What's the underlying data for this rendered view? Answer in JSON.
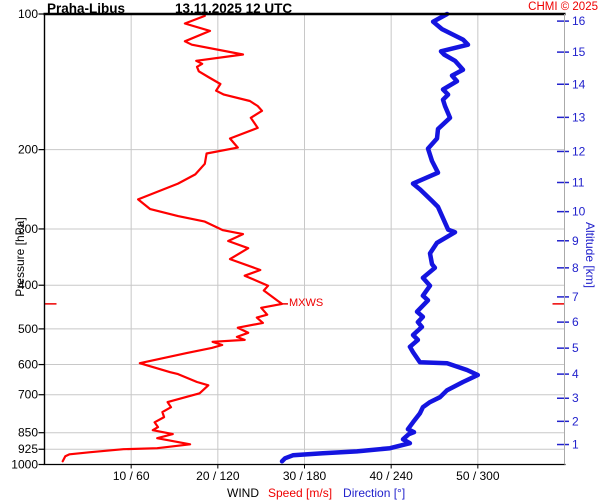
{
  "header": {
    "station": "Praha-Libus",
    "datetime": "13.11.2025 12 UTC",
    "credit": "CHMI © 2025"
  },
  "axes": {
    "pressure_label": "Pressure [hPa]",
    "altitude_label": "Altitude [km]",
    "wind_label": "WIND",
    "speed_label": "Speed [m/s]",
    "direction_label": "Direction [°]"
  },
  "annotations": {
    "mxws": "MXWS"
  },
  "colors": {
    "speed_curve": "#ff0000",
    "direction_curve": "#1414e0",
    "speed_text": "#ee0000",
    "direction_text": "#2222cc",
    "grid": "#c8c8c8",
    "frame": "#000000",
    "right_axis": "#aaaaaa"
  },
  "chart_data": {
    "type": "line",
    "title": "Praha-Libus 13.11.2025 12 UTC — vertical wind profile sounding",
    "grid": true,
    "y_axis": {
      "label": "Pressure [hPa]",
      "scale": "log",
      "min": 100,
      "max": 1000,
      "ticks": [
        100,
        200,
        300,
        400,
        500,
        600,
        700,
        850,
        925,
        1000
      ]
    },
    "y_axis_right": {
      "label": "Altitude [km]",
      "ticks": [
        {
          "km": 16,
          "p": 103.7
        },
        {
          "km": 15,
          "p": 121.5
        },
        {
          "km": 14,
          "p": 143.2
        },
        {
          "km": 13,
          "p": 169.6
        },
        {
          "km": 12,
          "p": 201.9
        },
        {
          "km": 11,
          "p": 236.6
        },
        {
          "km": 10,
          "p": 274.6
        },
        {
          "km": 9,
          "p": 318.7
        },
        {
          "km": 8,
          "p": 366.0
        },
        {
          "km": 7,
          "p": 424.6
        },
        {
          "km": 6,
          "p": 483.0
        },
        {
          "km": 5,
          "p": 551.7
        },
        {
          "km": 4,
          "p": 630.0
        },
        {
          "km": 3,
          "p": 712.7
        },
        {
          "km": 2,
          "p": 802.0
        },
        {
          "km": 1,
          "p": 903.0
        }
      ]
    },
    "x_axes": {
      "speed": {
        "label": "Speed [m/s]",
        "min": 0,
        "max": 60
      },
      "direction": {
        "label": "Direction [°]",
        "min": 0,
        "max": 360
      }
    },
    "x_tick_labels": [
      {
        "speed": 10,
        "direction": 60,
        "label": "10 / 60"
      },
      {
        "speed": 20,
        "direction": 120,
        "label": "20 / 120"
      },
      {
        "speed": 30,
        "direction": 180,
        "label": "30 / 180"
      },
      {
        "speed": 40,
        "direction": 240,
        "label": "40 / 240"
      },
      {
        "speed": 50,
        "direction": 300,
        "label": "50 / 300"
      }
    ],
    "annotation": {
      "label": "MXWS",
      "pressure": 440,
      "speed": 27.4
    },
    "series": [
      {
        "name": "wind_speed",
        "axis": "speed",
        "unit": "m/s",
        "width": 2.2,
        "points": [
          [
            101,
            18.5
          ],
          [
            105,
            16.2
          ],
          [
            109,
            19.1
          ],
          [
            115,
            16.2
          ],
          [
            117,
            17.0
          ],
          [
            123,
            22.9
          ],
          [
            127,
            17.5
          ],
          [
            129,
            18.2
          ],
          [
            131,
            17.6
          ],
          [
            134,
            17.8
          ],
          [
            138,
            18.9
          ],
          [
            143,
            20.3
          ],
          [
            148,
            19.8
          ],
          [
            151,
            20.7
          ],
          [
            156,
            23.7
          ],
          [
            160,
            24.6
          ],
          [
            164,
            25.1
          ],
          [
            170,
            23.8
          ],
          [
            179,
            24.6
          ],
          [
            189,
            21.4
          ],
          [
            198,
            22.3
          ],
          [
            204,
            18.7
          ],
          [
            215,
            18.5
          ],
          [
            227,
            17.4
          ],
          [
            238,
            15.4
          ],
          [
            258,
            10.8
          ],
          [
            271,
            12.2
          ],
          [
            281,
            15.4
          ],
          [
            289,
            18.5
          ],
          [
            302,
            20.6
          ],
          [
            308,
            22.9
          ],
          [
            319,
            21.2
          ],
          [
            331,
            23.5
          ],
          [
            350,
            21.4
          ],
          [
            370,
            24.9
          ],
          [
            381,
            23.1
          ],
          [
            401,
            25.8
          ],
          [
            411,
            25.3
          ],
          [
            433,
            26.9
          ],
          [
            440,
            27.4
          ],
          [
            449,
            25.0
          ],
          [
            465,
            25.7
          ],
          [
            472,
            24.5
          ],
          [
            485,
            25.2
          ],
          [
            497,
            22.3
          ],
          [
            510,
            23.5
          ],
          [
            521,
            22.2
          ],
          [
            529,
            23.1
          ],
          [
            534,
            19.4
          ],
          [
            543,
            20.5
          ],
          [
            551,
            19.3
          ],
          [
            566,
            16.4
          ],
          [
            596,
            11.0
          ],
          [
            624,
            14.5
          ],
          [
            630,
            15.4
          ],
          [
            656,
            17.6
          ],
          [
            667,
            18.9
          ],
          [
            695,
            17.9
          ],
          [
            727,
            14.2
          ],
          [
            746,
            14.6
          ],
          [
            765,
            13.6
          ],
          [
            785,
            13.8
          ],
          [
            806,
            12.7
          ],
          [
            826,
            13.1
          ],
          [
            839,
            12.5
          ],
          [
            856,
            14.8
          ],
          [
            874,
            13.0
          ],
          [
            902,
            16.8
          ],
          [
            920,
            13.0
          ],
          [
            925,
            9.1
          ],
          [
            939,
            5.3
          ],
          [
            949,
            2.9
          ],
          [
            959,
            2.4
          ],
          [
            984,
            2.1
          ]
        ]
      },
      {
        "name": "wind_direction",
        "axis": "direction",
        "unit": "deg",
        "width": 4.5,
        "points": [
          [
            100,
            278.7
          ],
          [
            104,
            269.0
          ],
          [
            108,
            275.2
          ],
          [
            114,
            289.7
          ],
          [
            117,
            293.2
          ],
          [
            121,
            274.5
          ],
          [
            123,
            276.6
          ],
          [
            127,
            284.2
          ],
          [
            133,
            289.7
          ],
          [
            137,
            282.1
          ],
          [
            141,
            285.6
          ],
          [
            147,
            275.9
          ],
          [
            151,
            279.4
          ],
          [
            155,
            275.9
          ],
          [
            160,
            277.3
          ],
          [
            170,
            280.7
          ],
          [
            180,
            272.4
          ],
          [
            189,
            271.7
          ],
          [
            199,
            265.5
          ],
          [
            212,
            268.3
          ],
          [
            225,
            272.4
          ],
          [
            238,
            255.1
          ],
          [
            245,
            259.9
          ],
          [
            260,
            268.3
          ],
          [
            268,
            272.4
          ],
          [
            301,
            279.4
          ],
          [
            305,
            284.2
          ],
          [
            322,
            271.7
          ],
          [
            340,
            266.9
          ],
          [
            359,
            268.3
          ],
          [
            366,
            270.3
          ],
          [
            385,
            262.0
          ],
          [
            401,
            266.9
          ],
          [
            422,
            262.0
          ],
          [
            432,
            265.5
          ],
          [
            458,
            257.9
          ],
          [
            470,
            262.0
          ],
          [
            483,
            258.5
          ],
          [
            495,
            261.3
          ],
          [
            516,
            255.1
          ],
          [
            529,
            258.5
          ],
          [
            548,
            253.0
          ],
          [
            563,
            255.1
          ],
          [
            593,
            259.9
          ],
          [
            596,
            278.7
          ],
          [
            617,
            292.5
          ],
          [
            633,
            300.0
          ],
          [
            656,
            289.7
          ],
          [
            684,
            278.7
          ],
          [
            709,
            273.8
          ],
          [
            727,
            266.9
          ],
          [
            746,
            262.0
          ],
          [
            770,
            259.9
          ],
          [
            806,
            255.1
          ],
          [
            835,
            251.6
          ],
          [
            848,
            255.8
          ],
          [
            856,
            252.3
          ],
          [
            879,
            248.2
          ],
          [
            897,
            253.0
          ],
          [
            920,
            239.2
          ],
          [
            935,
            216.3
          ],
          [
            944,
            192.8
          ],
          [
            954,
            172.0
          ],
          [
            969,
            166.5
          ],
          [
            984,
            164.4
          ]
        ]
      }
    ]
  }
}
